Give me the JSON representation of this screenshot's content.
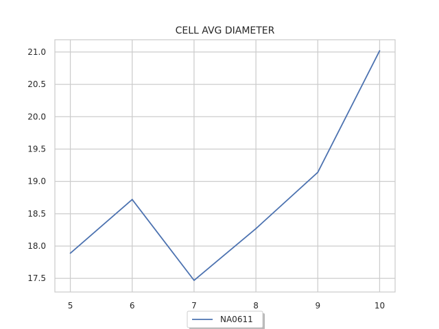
{
  "chart_data": {
    "type": "line",
    "title": "CELL AVG  DIAMETER",
    "xlabel": "",
    "ylabel": "",
    "x": [
      5,
      6,
      7,
      8,
      9,
      10
    ],
    "xlim": [
      4.75,
      10.25
    ],
    "ylim": [
      17.29,
      21.19
    ],
    "xticks": [
      "5",
      "6",
      "7",
      "8",
      "9",
      "10"
    ],
    "yticks": [
      "17.5",
      "18.0",
      "18.5",
      "19.0",
      "19.5",
      "20.0",
      "20.5",
      "21.0"
    ],
    "grid": true,
    "legend_position": "bottom-center",
    "series": [
      {
        "name": "NA0611",
        "color": "#4c72b0",
        "values": [
          17.89,
          18.72,
          17.47,
          18.27,
          19.14,
          21.02
        ]
      }
    ]
  }
}
